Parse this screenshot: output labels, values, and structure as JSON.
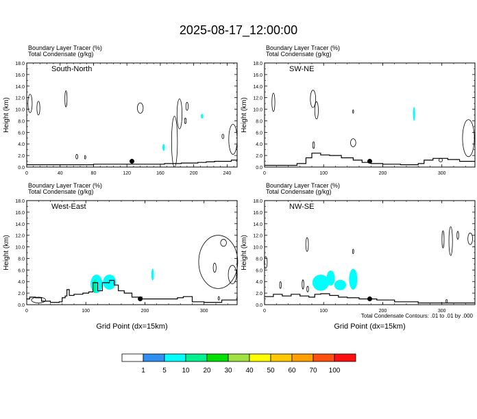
{
  "title": "2025-08-17_12:00:00",
  "footnote": "Total Condensate Contours: .01 to .01 by .000",
  "colorbar": {
    "labels": [
      "1",
      "5",
      "10",
      "20",
      "30",
      "40",
      "50",
      "60",
      "70",
      "100"
    ],
    "colors": [
      "#ffffff",
      "#3090f0",
      "#00ffff",
      "#00f090",
      "#00e000",
      "#a0e040",
      "#ffff00",
      "#ffc800",
      "#ffa000",
      "#ff5010",
      "#ff1010"
    ]
  },
  "colors": {
    "tracer_fill": "#3090f0",
    "tracer_fill_light": "#00ffff",
    "terrain_line": "#000000",
    "marker": "#000000"
  },
  "chart_data": [
    {
      "type": "heatmap",
      "header_line1": "Boundary Layer Tracer   (%)",
      "header_line2": "Total Condensate   (g/kg)",
      "label": "South-North",
      "ylabel": "Height (km)",
      "xlabel": "",
      "xlim": [
        0,
        252
      ],
      "xticks": [
        0,
        40,
        80,
        120,
        160,
        200,
        240
      ],
      "ylim": [
        0,
        18
      ],
      "yticks": [
        "0.0",
        "2.0",
        "4.0",
        "6.0",
        "8.0",
        "10.0",
        "12.0",
        "14.0",
        "16.0",
        "18.0"
      ],
      "marker": {
        "x": 126,
        "y": 1.0
      },
      "terrain": [
        [
          0,
          0.4
        ],
        [
          20,
          0.4
        ],
        [
          40,
          0.4
        ],
        [
          60,
          0.4
        ],
        [
          80,
          0.5
        ],
        [
          100,
          0.5
        ],
        [
          120,
          0.5
        ],
        [
          150,
          0.5
        ],
        [
          165,
          0.6
        ],
        [
          175,
          0.6
        ],
        [
          185,
          0.7
        ],
        [
          195,
          0.7
        ],
        [
          205,
          0.8
        ],
        [
          215,
          0.9
        ],
        [
          225,
          1.0
        ],
        [
          235,
          1.0
        ],
        [
          245,
          1.2
        ],
        [
          252,
          1.4
        ]
      ],
      "tracer_patches": [
        {
          "level": 5,
          "cx": 164,
          "cy": 3.4,
          "rx": 1.5,
          "ry": 0.6
        },
        {
          "level": 5,
          "cx": 210,
          "cy": 8.8,
          "rx": 1.5,
          "ry": 0.4
        }
      ],
      "condensate_contours": [
        {
          "cx": 4,
          "cy": 11.0,
          "rx": 2.5,
          "ry": 1.6
        },
        {
          "cx": 14,
          "cy": 10.2,
          "rx": 1.8,
          "ry": 1.2
        },
        {
          "cx": 47,
          "cy": 11.8,
          "rx": 1.3,
          "ry": 1.4
        },
        {
          "cx": 136,
          "cy": 10.2,
          "rx": 3.5,
          "ry": 0.9
        },
        {
          "cx": 177,
          "cy": 4.4,
          "rx": 3.5,
          "ry": 4.4
        },
        {
          "cx": 183,
          "cy": 9.2,
          "rx": 3.0,
          "ry": 2.6
        },
        {
          "cx": 190,
          "cy": 8.0,
          "rx": 1.0,
          "ry": 0.5
        },
        {
          "cx": 192,
          "cy": 10.5,
          "rx": 1.4,
          "ry": 0.7
        },
        {
          "cx": 247,
          "cy": 4.8,
          "rx": 5.0,
          "ry": 2.6
        },
        {
          "cx": 235,
          "cy": 5.3,
          "rx": 1.2,
          "ry": 0.4
        },
        {
          "cx": 60,
          "cy": 1.8,
          "rx": 1.2,
          "ry": 0.4
        },
        {
          "cx": 70,
          "cy": 1.7,
          "rx": 0.8,
          "ry": 0.3
        }
      ]
    },
    {
      "type": "heatmap",
      "header_line1": "Boundary Layer Tracer   (%)",
      "header_line2": "Total Condensate   (g/kg)",
      "label": "SW-NE",
      "ylabel": "Height (km)",
      "xlabel": "",
      "xlim": [
        0,
        356
      ],
      "xticks": [
        0,
        100,
        200,
        300
      ],
      "ylim": [
        0,
        18
      ],
      "yticks": [
        "0.0",
        "2.0",
        "4.0",
        "6.0",
        "8.0",
        "10.0",
        "12.0",
        "14.0",
        "16.0",
        "18.0"
      ],
      "marker": {
        "x": 178,
        "y": 1.0
      },
      "terrain": [
        [
          0,
          0.3
        ],
        [
          30,
          0.3
        ],
        [
          55,
          0.6
        ],
        [
          70,
          1.6
        ],
        [
          80,
          2.4
        ],
        [
          95,
          2.1
        ],
        [
          110,
          2.0
        ],
        [
          130,
          1.6
        ],
        [
          150,
          1.2
        ],
        [
          165,
          0.8
        ],
        [
          180,
          0.6
        ],
        [
          200,
          0.5
        ],
        [
          230,
          0.4
        ],
        [
          260,
          0.6
        ],
        [
          270,
          1.2
        ],
        [
          285,
          1.5
        ],
        [
          310,
          1.3
        ],
        [
          330,
          1.0
        ],
        [
          356,
          1.0
        ]
      ],
      "tracer_patches": [
        {
          "level": 5,
          "cx": 253,
          "cy": 9.2,
          "rx": 1.8,
          "ry": 1.2
        }
      ],
      "condensate_contours": [
        {
          "cx": 15,
          "cy": 11.2,
          "rx": 2.5,
          "ry": 1.6
        },
        {
          "cx": 82,
          "cy": 11.8,
          "rx": 4.5,
          "ry": 1.5
        },
        {
          "cx": 88,
          "cy": 9.8,
          "rx": 3.0,
          "ry": 1.5
        },
        {
          "cx": 83,
          "cy": 3.8,
          "rx": 1.5,
          "ry": 0.6
        },
        {
          "cx": 150,
          "cy": 4.2,
          "rx": 4.5,
          "ry": 0.7
        },
        {
          "cx": 150,
          "cy": 9.6,
          "rx": 0.8,
          "ry": 0.3
        },
        {
          "cx": 345,
          "cy": 5.0,
          "rx": 10.0,
          "ry": 3.2
        },
        {
          "cx": 298,
          "cy": 1.2,
          "rx": 3.0,
          "ry": 0.3
        }
      ]
    },
    {
      "type": "heatmap",
      "header_line1": "Boundary Layer Tracer   (%)",
      "header_line2": "Total Condensate   (g/kg)",
      "label": "West-East",
      "ylabel": "Height (km)",
      "xlabel": "Grid Point (dx=15km)",
      "xlim": [
        0,
        356
      ],
      "xticks": [
        0,
        100,
        200,
        300
      ],
      "ylim": [
        0,
        18
      ],
      "yticks": [
        "0.0",
        "2.0",
        "4.0",
        "6.0",
        "8.0",
        "10.0",
        "12.0",
        "14.0",
        "16.0",
        "18.0"
      ],
      "marker": {
        "x": 192,
        "y": 1.0
      },
      "terrain": [
        [
          0,
          1.0
        ],
        [
          5,
          1.3
        ],
        [
          15,
          1.2
        ],
        [
          25,
          0.6
        ],
        [
          40,
          0.4
        ],
        [
          55,
          0.5
        ],
        [
          60,
          1.2
        ],
        [
          65,
          1.5
        ],
        [
          68,
          2.6
        ],
        [
          72,
          1.6
        ],
        [
          80,
          1.8
        ],
        [
          95,
          2.0
        ],
        [
          105,
          2.2
        ],
        [
          112,
          3.8
        ],
        [
          120,
          2.4
        ],
        [
          128,
          3.8
        ],
        [
          140,
          4.2
        ],
        [
          148,
          3.4
        ],
        [
          155,
          2.4
        ],
        [
          165,
          2.0
        ],
        [
          178,
          1.3
        ],
        [
          195,
          1.0
        ],
        [
          230,
          1.0
        ],
        [
          255,
          1.2
        ],
        [
          265,
          1.4
        ],
        [
          280,
          0.5
        ],
        [
          300,
          0.4
        ],
        [
          330,
          0.8
        ],
        [
          356,
          1.4
        ]
      ],
      "tracer_patches": [
        {
          "level": 5,
          "cx": 118,
          "cy": 3.6,
          "rx": 10.0,
          "ry": 1.6
        },
        {
          "level": 5,
          "cx": 140,
          "cy": 3.9,
          "rx": 11.0,
          "ry": 1.3
        },
        {
          "level": 10,
          "cx": 115,
          "cy": 3.2,
          "rx": 2.5,
          "ry": 1.2
        },
        {
          "level": 5,
          "cx": 213,
          "cy": 5.2,
          "rx": 2.2,
          "ry": 1.0
        }
      ],
      "condensate_contours": [
        {
          "cx": 324,
          "cy": 7.4,
          "rx": 33.0,
          "ry": 4.6
        },
        {
          "cx": 333,
          "cy": 10.7,
          "rx": 5.0,
          "ry": 0.6
        },
        {
          "cx": 348,
          "cy": 5.2,
          "rx": 7.0,
          "ry": 1.6
        },
        {
          "cx": 318,
          "cy": 6.4,
          "rx": 2.5,
          "ry": 0.8
        },
        {
          "cx": 325,
          "cy": 1.1,
          "rx": 1.2,
          "ry": 0.3
        },
        {
          "cx": 20,
          "cy": 0.8,
          "rx": 12.0,
          "ry": 0.5
        }
      ]
    },
    {
      "type": "heatmap",
      "header_line1": "Boundary Layer Tracer   (%)",
      "header_line2": "Total Condensate   (g/kg)",
      "label": "NW-SE",
      "ylabel": "Height (km)",
      "xlabel": "Grid Point (dx=15km)",
      "xlim": [
        0,
        356
      ],
      "xticks": [
        0,
        100,
        200,
        300
      ],
      "ylim": [
        0,
        18
      ],
      "yticks": [
        "0.0",
        "2.0",
        "4.0",
        "6.0",
        "8.0",
        "10.0",
        "12.0",
        "14.0",
        "16.0",
        "18.0"
      ],
      "marker": {
        "x": 178,
        "y": 1.0
      },
      "terrain": [
        [
          0,
          1.4
        ],
        [
          15,
          1.8
        ],
        [
          30,
          1.5
        ],
        [
          45,
          1.8
        ],
        [
          60,
          1.5
        ],
        [
          75,
          1.3
        ],
        [
          85,
          1.8
        ],
        [
          95,
          1.9
        ],
        [
          110,
          1.6
        ],
        [
          125,
          1.3
        ],
        [
          140,
          1.2
        ],
        [
          160,
          1.0
        ],
        [
          190,
          0.8
        ],
        [
          220,
          0.5
        ],
        [
          260,
          0.3
        ],
        [
          300,
          0.3
        ],
        [
          356,
          0.3
        ]
      ],
      "tracer_patches": [
        {
          "level": 5,
          "cx": 95,
          "cy": 3.8,
          "rx": 14.0,
          "ry": 1.4
        },
        {
          "level": 5,
          "cx": 112,
          "cy": 4.6,
          "rx": 7.0,
          "ry": 1.3
        },
        {
          "level": 5,
          "cx": 150,
          "cy": 4.4,
          "rx": 7.0,
          "ry": 1.8
        },
        {
          "level": 5,
          "cx": 128,
          "cy": 3.4,
          "rx": 10.0,
          "ry": 0.9
        }
      ],
      "condensate_contours": [
        {
          "cx": 2,
          "cy": 7.3,
          "rx": 2.5,
          "ry": 1.0
        },
        {
          "cx": 72,
          "cy": 10.4,
          "rx": 2.2,
          "ry": 1.2
        },
        {
          "cx": 27,
          "cy": 3.4,
          "rx": 1.5,
          "ry": 0.6
        },
        {
          "cx": 65,
          "cy": 3.5,
          "rx": 1.5,
          "ry": 0.8
        },
        {
          "cx": 73,
          "cy": 2.7,
          "rx": 1.5,
          "ry": 0.5
        },
        {
          "cx": 150,
          "cy": 9.2,
          "rx": 1.0,
          "ry": 0.4
        },
        {
          "cx": 302,
          "cy": 11.3,
          "rx": 1.8,
          "ry": 1.5
        },
        {
          "cx": 315,
          "cy": 11.0,
          "rx": 3.0,
          "ry": 2.5
        },
        {
          "cx": 327,
          "cy": 12.0,
          "rx": 1.5,
          "ry": 0.7
        },
        {
          "cx": 348,
          "cy": 11.4,
          "rx": 4.0,
          "ry": 1.0
        },
        {
          "cx": 308,
          "cy": 0.6,
          "rx": 1.2,
          "ry": 0.3
        }
      ]
    }
  ]
}
